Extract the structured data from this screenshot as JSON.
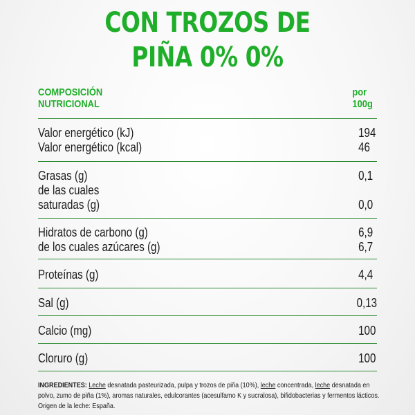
{
  "title": {
    "line1": "CON TROZOS DE",
    "line2": "PIÑA 0% 0%"
  },
  "header": {
    "left1": "COMPOSICIÓN",
    "left2": "NUTRICIONAL",
    "right1": "por",
    "right2": "100g"
  },
  "nutrients": {
    "energy": {
      "label1": "Valor energético (kJ)",
      "value1": "194",
      "label2": "Valor energético (kcal)",
      "value2": "46"
    },
    "fat": {
      "label1": "Grasas (g)",
      "value1": "0,1",
      "label2": "de las cuales",
      "label3": "saturadas (g)",
      "value3": "0,0"
    },
    "carbs": {
      "label1": "Hidratos de carbono (g)",
      "value1": "6,9",
      "label2": "de los cuales azúcares (g)",
      "value2": "6,7"
    },
    "protein": {
      "label": "Proteínas (g)",
      "value": "4,4"
    },
    "salt": {
      "label": "Sal (g)",
      "value": "0,13"
    },
    "calcium": {
      "label": "Calcio (mg)",
      "value": "100"
    },
    "chloride": {
      "label": "Cloruro (g)",
      "value": "100"
    }
  },
  "ingredients": {
    "heading": "INGREDIENTES:",
    "t1": "Leche",
    "t2": " desnatada pasteurizada, pulpa y trozos de piña (10%), ",
    "t3": "leche",
    "t4": " concentrada, ",
    "t5": "leche",
    "t6": " desnatada en polvo, zumo de piña (1%), aromas naturales, edulcorantes (acesulfamo K y sucralosa), bifidobacterias y fermentos lácticos. Origen de la leche: España."
  },
  "colors": {
    "accent": "#1fae2a",
    "rule": "#2a8a2f",
    "text": "#1a1a1a"
  }
}
